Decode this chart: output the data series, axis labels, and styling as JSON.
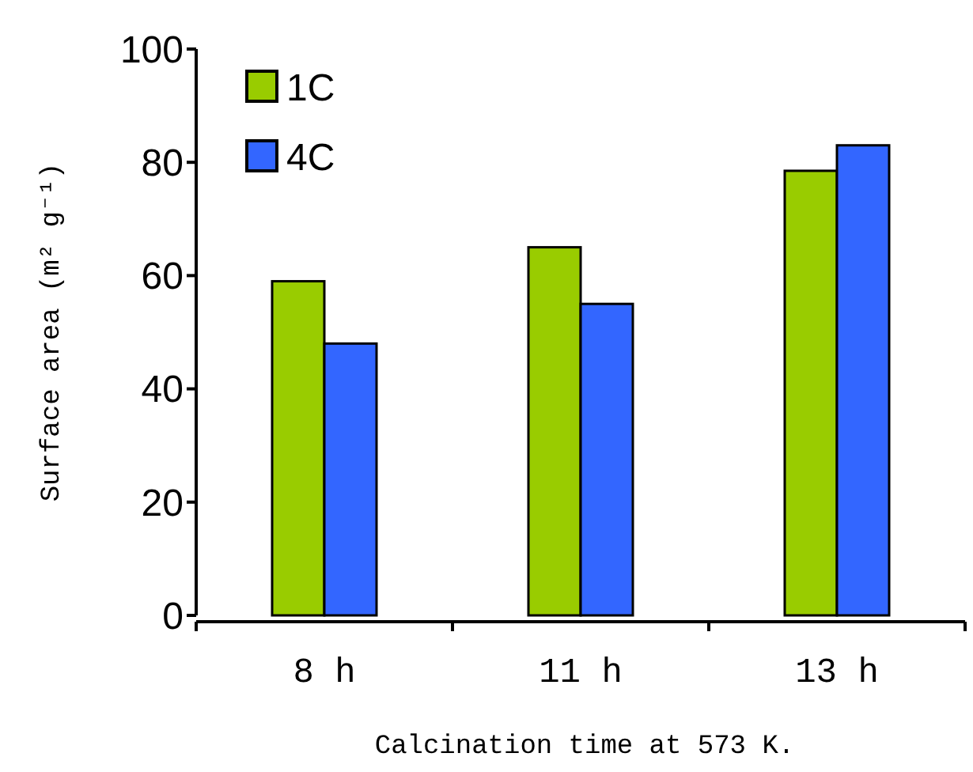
{
  "chart_data": {
    "type": "bar",
    "xlabel": "Calcination time at 573 K.",
    "ylabel": "Surface area (m² g⁻¹)",
    "categories": [
      "8 h",
      "11 h",
      "13 h"
    ],
    "series": [
      {
        "name": "1C",
        "color": "#99cc00",
        "values": [
          59,
          65,
          78.5
        ]
      },
      {
        "name": "4C",
        "color": "#3366ff",
        "values": [
          48,
          55,
          83
        ]
      }
    ],
    "ylim": [
      0,
      100
    ],
    "yticks": [
      0,
      20,
      40,
      60,
      80,
      100
    ],
    "legend": "top left",
    "grid": false
  }
}
